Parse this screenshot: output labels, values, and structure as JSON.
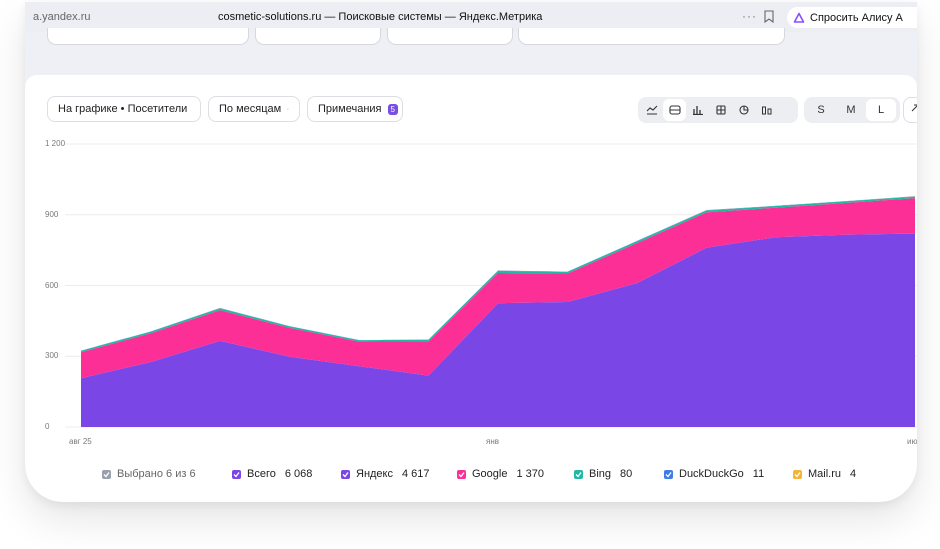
{
  "browser": {
    "url": "a.yandex.ru",
    "title": "cosmetic-solutions.ru — Поисковые системы — Яндекс.Метрика",
    "more": "···",
    "alice_label": "Спросить Алису А"
  },
  "toolbar": {
    "chart_metric": "На графике • Посетители",
    "grouping": "По месяцам",
    "notes_label": "Примечания",
    "notes_count": "5",
    "sizes": [
      "S",
      "M",
      "L"
    ],
    "active_size": "L"
  },
  "chart_data": {
    "type": "area",
    "x": [
      "авг 25",
      "",
      "",
      "",
      "",
      "",
      "янв",
      "",
      "",
      "",
      "",
      "",
      "июн"
    ],
    "xticks": [
      "авг 25",
      "янв",
      "июн"
    ],
    "yticks": [
      "0",
      "300",
      "600",
      "900",
      "1 200"
    ],
    "ylim": [
      0,
      1200
    ],
    "grid": true,
    "stacked": true,
    "series": [
      {
        "name": "Яндекс",
        "color": "#7a46e6",
        "values": [
          207,
          275,
          365,
          298,
          258,
          218,
          525,
          530,
          610,
          760,
          805,
          815,
          820
        ]
      },
      {
        "name": "Google",
        "color": "#fb2f96",
        "values": [
          110,
          122,
          130,
          122,
          104,
          145,
          128,
          121,
          170,
          150,
          125,
          135,
          150
        ]
      },
      {
        "name": "Bing",
        "color": "#21b9a4",
        "values": [
          6,
          7,
          8,
          7,
          6,
          7,
          9,
          7,
          8,
          8,
          7,
          7,
          7
        ]
      },
      {
        "name": "DuckDuckGo",
        "color": "#4a6cf0",
        "values": [
          1,
          1,
          1,
          1,
          1,
          1,
          1,
          1,
          1,
          1,
          1,
          1,
          1
        ]
      },
      {
        "name": "Mail.ru",
        "color": "#f5a623",
        "values": [
          0,
          0,
          1,
          0,
          0,
          0,
          1,
          0,
          0,
          1,
          0,
          0,
          1
        ]
      }
    ]
  },
  "legend": {
    "selected": "Выбрано 6 из 6",
    "items": [
      {
        "name": "Всего",
        "value": "6 068",
        "color": "#7a46e6"
      },
      {
        "name": "Яндекс",
        "value": "4 617",
        "color": "#7a46e6"
      },
      {
        "name": "Google",
        "value": "1 370",
        "color": "#fb2f96"
      },
      {
        "name": "Bing",
        "value": "80",
        "color": "#21b9a4"
      },
      {
        "name": "DuckDuckGo",
        "value": "11",
        "color": "#3f7ee8"
      },
      {
        "name": "Mail.ru",
        "value": "4",
        "color": "#f5b33a"
      }
    ]
  }
}
